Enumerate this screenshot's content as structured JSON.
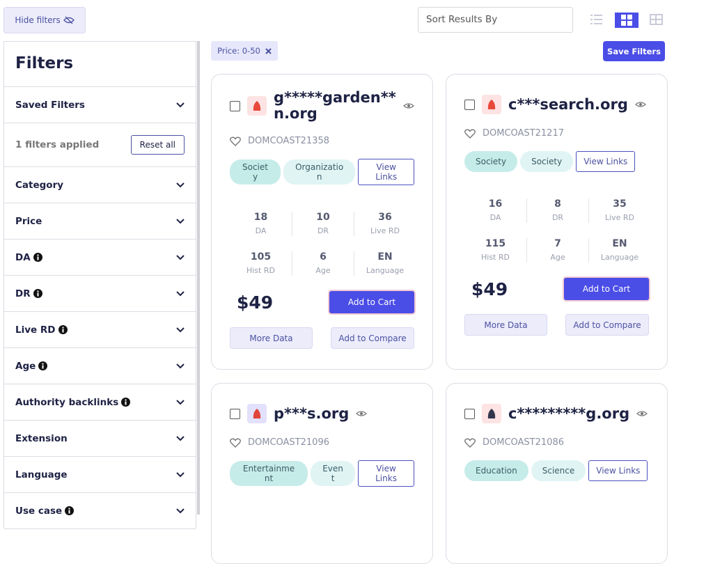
{
  "toolbar": {
    "hide_filters": "Hide filters",
    "sort_placeholder": "Sort Results By"
  },
  "sidebar": {
    "title": "Filters",
    "saved": "Saved Filters",
    "applied": "1 filters applied",
    "reset": "Reset all",
    "sections": [
      {
        "label": "Category",
        "info": false
      },
      {
        "label": "Price",
        "info": false
      },
      {
        "label": "DA",
        "info": true
      },
      {
        "label": "DR",
        "info": true
      },
      {
        "label": "Live RD",
        "info": true
      },
      {
        "label": "Age",
        "info": true
      },
      {
        "label": "Authority backlinks",
        "info": true
      },
      {
        "label": "Extension",
        "info": false
      },
      {
        "label": "Language",
        "info": false
      },
      {
        "label": "Use case",
        "info": true
      }
    ]
  },
  "active_filter": "Price: 0-50",
  "save_filters": "Save Filters",
  "cards": [
    {
      "domain": "g*****garden**n.org",
      "code": "DOMCOAST21358",
      "tags": [
        "Society",
        "Organization"
      ],
      "view_links": "View Links",
      "stats": [
        {
          "value": "18",
          "label": "DA"
        },
        {
          "value": "10",
          "label": "DR"
        },
        {
          "value": "36",
          "label": "Live RD"
        },
        {
          "value": "105",
          "label": "Hist RD"
        },
        {
          "value": "6",
          "label": "Age"
        },
        {
          "value": "EN",
          "label": "Language"
        }
      ],
      "price": "$49",
      "add_to_cart": "Add to Cart",
      "more_data": "More Data",
      "add_to_compare": "Add to Compare"
    },
    {
      "domain": "c***search.org",
      "code": "DOMCOAST21217",
      "tags": [
        "Society",
        "Society"
      ],
      "view_links": "View Links",
      "stats": [
        {
          "value": "16",
          "label": "DA"
        },
        {
          "value": "8",
          "label": "DR"
        },
        {
          "value": "35",
          "label": "Live RD"
        },
        {
          "value": "115",
          "label": "Hist RD"
        },
        {
          "value": "7",
          "label": "Age"
        },
        {
          "value": "EN",
          "label": "Language"
        }
      ],
      "price": "$49",
      "add_to_cart": "Add to Cart",
      "more_data": "More Data",
      "add_to_compare": "Add to Compare"
    },
    {
      "domain": "p***s.org",
      "code": "DOMCOAST21096",
      "tags": [
        "Entertainment",
        "Event"
      ],
      "view_links": "View Links"
    },
    {
      "domain": "c*********g.org",
      "code": "DOMCOAST21086",
      "tags": [
        "Education",
        "Science"
      ],
      "view_links": "View Links"
    }
  ]
}
